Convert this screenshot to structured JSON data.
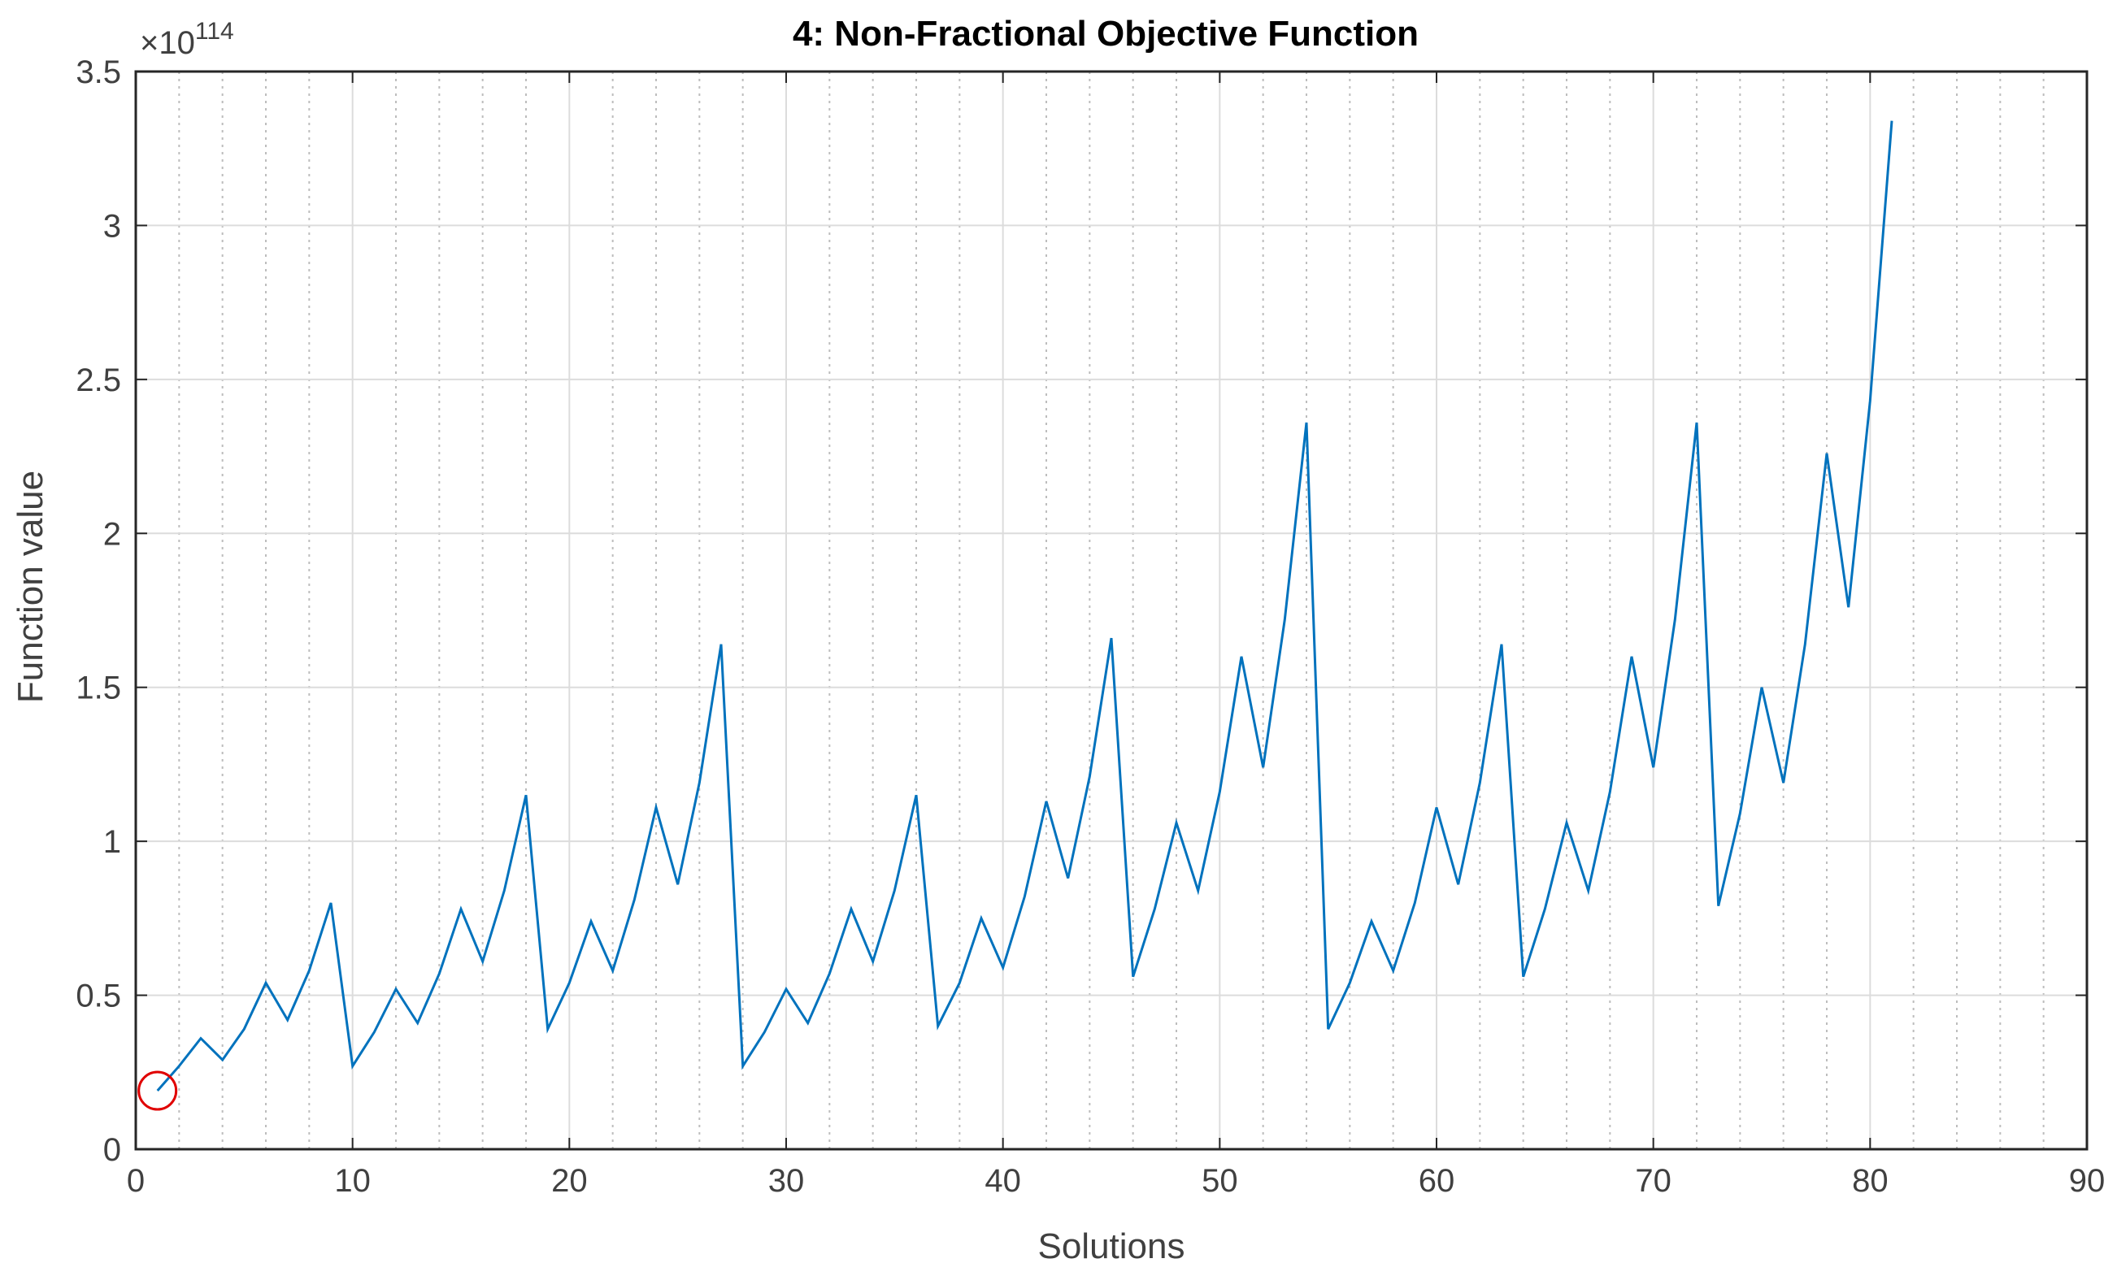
{
  "chart_data": {
    "type": "line",
    "title": "4: Non-Fractional Objective Function",
    "xlabel": "Solutions",
    "ylabel": "Function value",
    "y_exponent_label": "×10",
    "y_exponent_value": "114",
    "xlim": [
      0,
      90
    ],
    "ylim": [
      0,
      3.5
    ],
    "x_ticks": [
      0,
      10,
      20,
      30,
      40,
      50,
      60,
      70,
      80,
      90
    ],
    "y_ticks": [
      0,
      0.5,
      1,
      1.5,
      2,
      2.5,
      3,
      3.5
    ],
    "x_tick_labels": [
      "0",
      "10",
      "20",
      "30",
      "40",
      "50",
      "60",
      "70",
      "80",
      "90"
    ],
    "y_tick_labels": [
      "0",
      "0.5",
      "1",
      "1.5",
      "2",
      "2.5",
      "3",
      "3.5"
    ],
    "grid": true,
    "minor_grid_x": true,
    "line_color": "#0072BD",
    "marker_color": "#E00000",
    "highlight_point": {
      "x": 1,
      "y": 0.19
    },
    "series": [
      {
        "x": [
          1,
          2,
          3,
          4,
          5,
          6,
          7,
          8,
          9,
          10,
          11,
          12,
          13,
          14,
          15,
          16,
          17,
          18,
          19,
          20,
          21,
          22,
          23,
          24,
          25,
          26,
          27,
          28,
          29,
          30,
          31,
          32,
          33,
          34,
          35,
          36,
          37,
          38,
          39,
          40,
          41,
          42,
          43,
          44,
          45,
          46,
          47,
          48,
          49,
          50,
          51,
          52,
          53,
          54,
          55,
          56,
          57,
          58,
          59,
          60,
          61,
          62,
          63,
          64,
          65,
          66,
          67,
          68,
          69,
          70,
          71,
          72,
          73,
          74,
          75,
          76,
          77,
          78,
          79,
          80,
          81
        ],
        "values": [
          0.19,
          0.27,
          0.36,
          0.29,
          0.39,
          0.54,
          0.42,
          0.58,
          0.8,
          0.27,
          0.38,
          0.52,
          0.41,
          0.57,
          0.78,
          0.61,
          0.84,
          1.15,
          0.39,
          0.54,
          0.74,
          0.58,
          0.81,
          1.11,
          0.86,
          1.19,
          1.64,
          0.27,
          0.38,
          0.52,
          0.41,
          0.57,
          0.78,
          0.61,
          0.84,
          1.15,
          0.4,
          0.54,
          0.75,
          0.59,
          0.82,
          1.13,
          0.88,
          1.21,
          1.66,
          0.56,
          0.78,
          1.06,
          0.84,
          1.16,
          1.6,
          1.24,
          1.72,
          2.36,
          0.39,
          0.54,
          0.74,
          0.58,
          0.8,
          1.11,
          0.86,
          1.19,
          1.64,
          0.56,
          0.78,
          1.06,
          0.84,
          1.16,
          1.6,
          1.24,
          1.72,
          2.36,
          0.79,
          1.09,
          1.5,
          1.19,
          1.64,
          2.26,
          1.76,
          2.43,
          3.34
        ]
      }
    ]
  }
}
